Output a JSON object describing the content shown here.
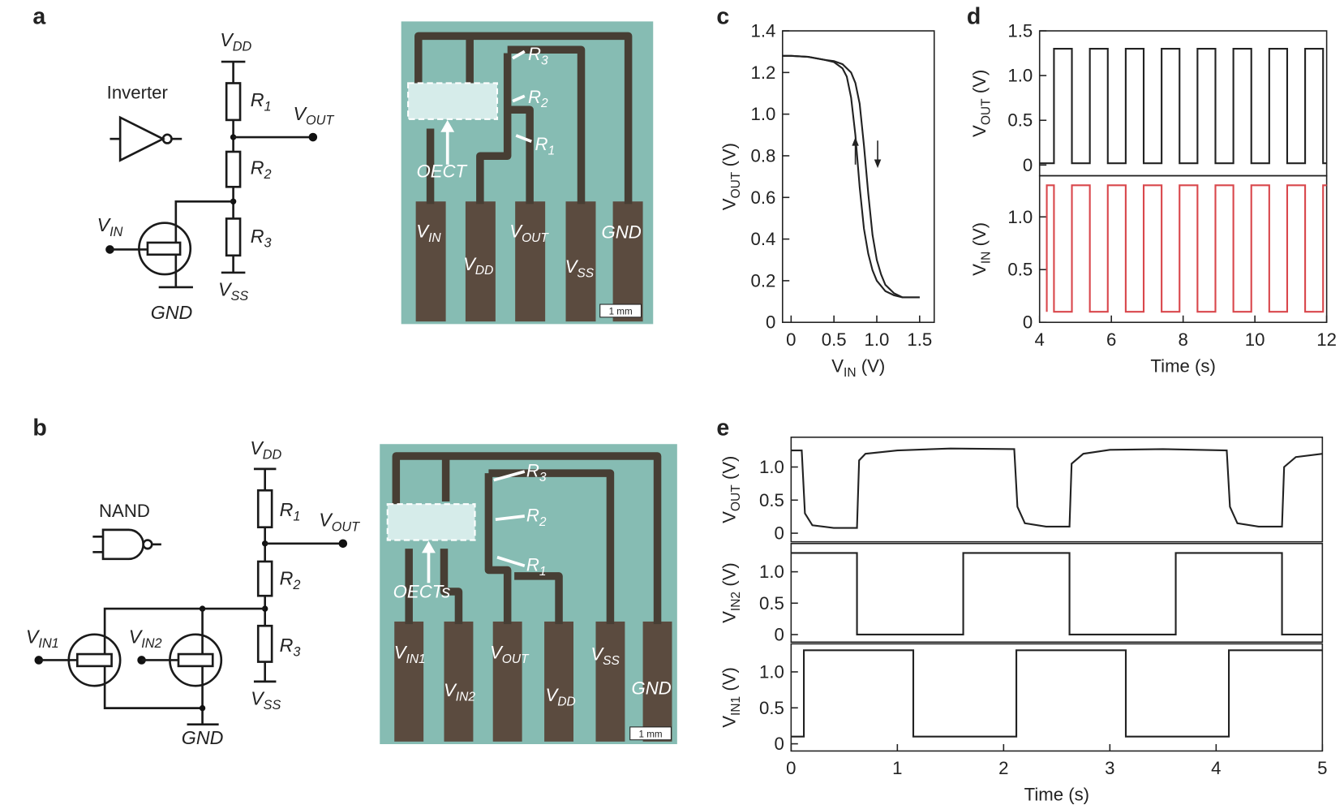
{
  "circuit_a": {
    "letter": "a",
    "gate": "Inverter",
    "vdd": "VDD",
    "r1": "R1",
    "r2": "R2",
    "r3": "R3",
    "vout": "VOUT",
    "vin": "VIN",
    "gnd": "GND",
    "vss": "VSS"
  },
  "photo_a": {
    "r3": "R3",
    "r2": "R2",
    "r1": "R1",
    "device": "OECT",
    "pads": [
      "VIN",
      "VDD",
      "VOUT",
      "VSS",
      "GND"
    ],
    "scale_bar": "1 mm"
  },
  "circuit_b": {
    "letter": "b",
    "gate": "NAND",
    "vdd": "VDD",
    "r1": "R1",
    "r2": "R2",
    "r3": "R3",
    "vout": "VOUT",
    "vin1": "VIN1",
    "vin2": "VIN2",
    "gnd": "GND",
    "vss": "VSS"
  },
  "photo_b": {
    "r3": "R3",
    "r2": "R2",
    "r1": "R1",
    "device": "OECTs",
    "pads": [
      "VIN1",
      "VIN2",
      "VOUT",
      "VDD",
      "VSS",
      "GND"
    ],
    "scale_bar": "1 mm"
  },
  "chart_data": [
    {
      "type": "line",
      "letter": "c",
      "xlabel": "VIN (V)",
      "xlim": [
        -0.1,
        1.67
      ],
      "xticks": [
        0,
        0.5,
        {
          "value": 1,
          "label": "1.0"
        },
        1.5
      ],
      "subplots": [
        {
          "ylabel": "VOUT (V)",
          "ylim": [
            0,
            1.4
          ],
          "yticks": [
            0,
            0.2,
            0.4,
            0.6,
            0.8,
            {
              "value": 1,
              "label": "1.0"
            },
            1.2,
            1.4
          ],
          "series": [
            {
              "color": "#222222",
              "x": [
                -0.1,
                0,
                0.2,
                0.4,
                0.5,
                0.6,
                0.65,
                0.7,
                0.75,
                0.8,
                0.85,
                0.9,
                0.95,
                1.0,
                1.1,
                1.2,
                1.3,
                1.4,
                1.5
              ],
              "values": [
                1.28,
                1.28,
                1.275,
                1.26,
                1.25,
                1.22,
                1.18,
                1.08,
                0.9,
                0.65,
                0.45,
                0.33,
                0.25,
                0.2,
                0.15,
                0.13,
                0.12,
                0.12,
                0.12
              ]
            },
            {
              "color": "#222222",
              "x": [
                -0.1,
                0,
                0.2,
                0.4,
                0.5,
                0.6,
                0.7,
                0.75,
                0.8,
                0.85,
                0.9,
                0.95,
                1.0,
                1.05,
                1.1,
                1.2,
                1.3,
                1.4,
                1.5
              ],
              "values": [
                1.28,
                1.28,
                1.275,
                1.26,
                1.255,
                1.24,
                1.2,
                1.15,
                1.05,
                0.85,
                0.62,
                0.42,
                0.3,
                0.23,
                0.18,
                0.14,
                0.12,
                0.12,
                0.12
              ]
            }
          ]
        }
      ]
    },
    {
      "type": "line",
      "letter": "d",
      "xlabel": "Time (s)",
      "xlim": [
        4,
        12
      ],
      "xticks": [
        4,
        6,
        8,
        10,
        12
      ],
      "subplots": [
        {
          "ylabel": "VOUT (V)",
          "ylim": [
            -0.12,
            1.5
          ],
          "yticks": [
            0,
            0.5,
            {
              "value": 1,
              "label": "1.0"
            },
            1.5
          ],
          "series": [
            {
              "color": "#222222",
              "x": [
                4,
                4.4,
                4.4,
                4.9,
                4.9,
                5.4,
                5.4,
                5.9,
                5.9,
                6.4,
                6.4,
                6.9,
                6.9,
                7.4,
                7.4,
                7.9,
                7.9,
                8.4,
                8.4,
                8.9,
                8.9,
                9.4,
                9.4,
                9.9,
                9.9,
                10.4,
                10.4,
                10.9,
                10.9,
                11.4,
                11.4,
                11.9,
                11.9,
                12
              ],
              "values": [
                0.02,
                0.02,
                1.3,
                1.3,
                0.02,
                0.02,
                1.3,
                1.3,
                0.02,
                0.02,
                1.3,
                1.3,
                0.02,
                0.02,
                1.3,
                1.3,
                0.02,
                0.02,
                1.3,
                1.3,
                0.02,
                0.02,
                1.3,
                1.3,
                0.02,
                0.02,
                1.3,
                1.3,
                0.02,
                0.02,
                1.3,
                1.3,
                0.02,
                0.02
              ]
            }
          ]
        },
        {
          "ylabel": "VIN (V)",
          "ylim": [
            0,
            1.39
          ],
          "yticks": [
            0,
            0.5,
            {
              "value": 1,
              "label": "1.0"
            }
          ],
          "series": [
            {
              "color": "#d9474c",
              "x": [
                4.2,
                4.2,
                4.4,
                4.4,
                4.9,
                4.9,
                5.4,
                5.4,
                5.9,
                5.9,
                6.4,
                6.4,
                6.9,
                6.9,
                7.4,
                7.4,
                7.9,
                7.9,
                8.4,
                8.4,
                8.9,
                8.9,
                9.4,
                9.4,
                9.9,
                9.9,
                10.4,
                10.4,
                10.9,
                10.9,
                11.4,
                11.4,
                11.9,
                11.9,
                12
              ],
              "values": [
                0.1,
                1.3,
                1.3,
                0.1,
                0.1,
                1.3,
                1.3,
                0.1,
                0.1,
                1.3,
                1.3,
                0.1,
                0.1,
                1.3,
                1.3,
                0.1,
                0.1,
                1.3,
                1.3,
                0.1,
                0.1,
                1.3,
                1.3,
                0.1,
                0.1,
                1.3,
                1.3,
                0.1,
                0.1,
                1.3,
                1.3,
                0.1,
                0.1,
                1.3,
                1.3
              ]
            }
          ]
        }
      ]
    },
    {
      "type": "line",
      "letter": "e",
      "xlabel": "Time (s)",
      "xlim": [
        0,
        5
      ],
      "xticks": [
        0,
        1,
        2,
        3,
        4,
        5
      ],
      "subplots": [
        {
          "ylabel": "VOUT (V)",
          "ylim": [
            -0.13,
            1.45
          ],
          "yticks": [
            0,
            0.5,
            {
              "value": 1,
              "label": "1.0"
            }
          ],
          "series": [
            {
              "color": "#222222",
              "x": [
                0,
                0.1,
                0.13,
                0.2,
                0.4,
                0.62,
                0.64,
                0.7,
                1,
                1.5,
                2.1,
                2.13,
                2.2,
                2.4,
                2.62,
                2.64,
                2.75,
                3,
                3.5,
                4.1,
                4.13,
                4.2,
                4.4,
                4.62,
                4.64,
                4.75,
                5
              ],
              "values": [
                1.25,
                1.25,
                0.3,
                0.12,
                0.08,
                0.08,
                1.1,
                1.2,
                1.25,
                1.28,
                1.27,
                0.4,
                0.15,
                0.1,
                0.1,
                1.05,
                1.2,
                1.26,
                1.27,
                1.25,
                0.4,
                0.15,
                0.1,
                0.1,
                1.0,
                1.15,
                1.2
              ]
            }
          ]
        },
        {
          "ylabel": "VIN2 (V)",
          "ylim": [
            -0.12,
            1.45
          ],
          "yticks": [
            0,
            0.5,
            {
              "value": 1,
              "label": "1.0"
            }
          ],
          "series": [
            {
              "color": "#222222",
              "x": [
                0,
                0.62,
                0.62,
                1.62,
                1.62,
                2.62,
                2.62,
                3.62,
                3.62,
                4.62,
                4.62,
                5
              ],
              "values": [
                1.3,
                1.3,
                0,
                0,
                1.3,
                1.3,
                0,
                0,
                1.3,
                1.3,
                0,
                0
              ]
            }
          ]
        },
        {
          "ylabel": "VIN1 (V)",
          "ylim": [
            -0.1,
            1.39
          ],
          "yticks": [
            0,
            0.5,
            {
              "value": 1,
              "label": "1.0"
            }
          ],
          "series": [
            {
              "color": "#222222",
              "x": [
                0,
                0.12,
                0.12,
                1.15,
                1.15,
                2.12,
                2.12,
                3.15,
                3.15,
                4.12,
                4.12,
                5
              ],
              "values": [
                0.1,
                0.1,
                1.3,
                1.3,
                0.1,
                0.1,
                1.3,
                1.3,
                0.1,
                0.1,
                1.3,
                1.3
              ]
            }
          ]
        }
      ]
    }
  ]
}
